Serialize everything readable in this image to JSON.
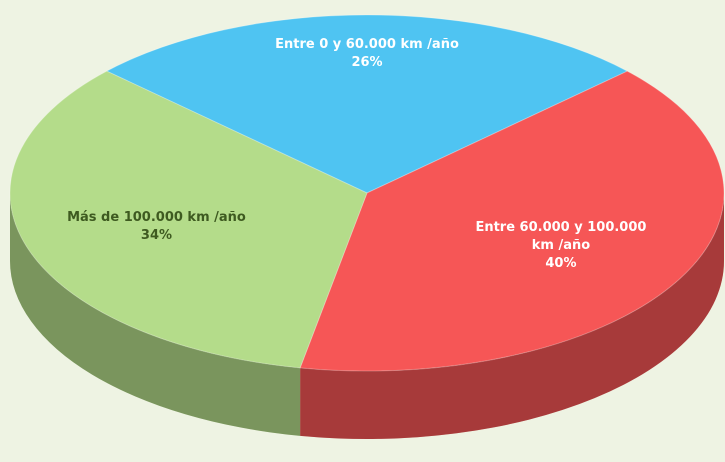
{
  "chart_data": {
    "type": "pie",
    "three_d": true,
    "categories": [
      "Entre 0 y 60.000 km /año",
      "Entre 60.000 y 100.000 km /año",
      "Más de 100.000 km /año"
    ],
    "values": [
      26,
      40,
      34
    ],
    "value_labels": [
      "26%",
      "40%",
      "34%"
    ],
    "colors": [
      "#4fc4f2",
      "#f65656",
      "#b4dc8a"
    ]
  }
}
